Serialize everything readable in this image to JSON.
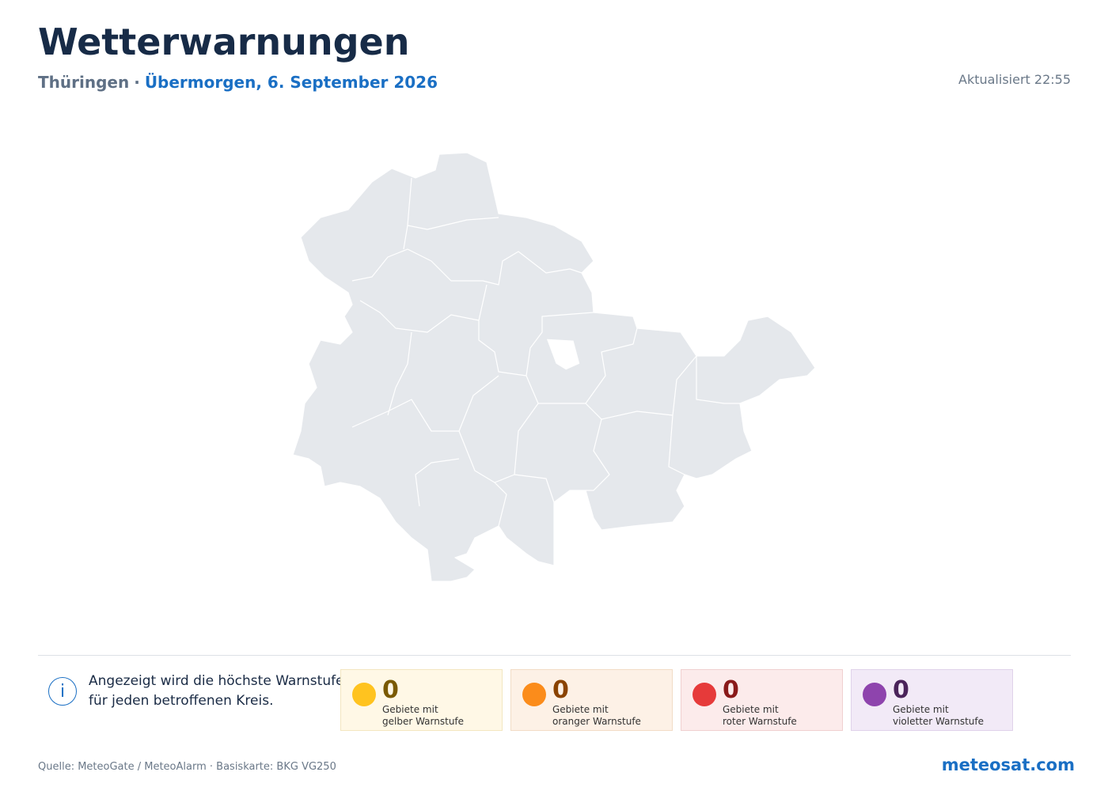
{
  "header": {
    "title": "Wetterwarnungen",
    "region": "Thüringen",
    "separator": "·",
    "date": "Übermorgen, 6. September 2026",
    "updated": "Aktualisiert 22:55"
  },
  "info": {
    "icon": "i",
    "lines": [
      "Angezeigt wird die höchste Warnstufe",
      "für jeden betroffenen Kreis."
    ]
  },
  "legend": [
    {
      "count": 0,
      "label_lines": [
        "Gebiete mit",
        "gelber Warnstufe"
      ]
    },
    {
      "count": 0,
      "label_lines": [
        "Gebiete mit",
        "oranger Warnstufe"
      ]
    },
    {
      "count": 0,
      "label_lines": [
        "Gebiete mit",
        "roter Warnstufe"
      ]
    },
    {
      "count": 0,
      "label_lines": [
        "Gebiete mit",
        "violetter Warnstufe"
      ]
    }
  ],
  "footer": {
    "source": "Quelle: MeteoGate / MeteoAlarm · Basiskarte: BKG VG250",
    "brand": "meteosat.com"
  }
}
